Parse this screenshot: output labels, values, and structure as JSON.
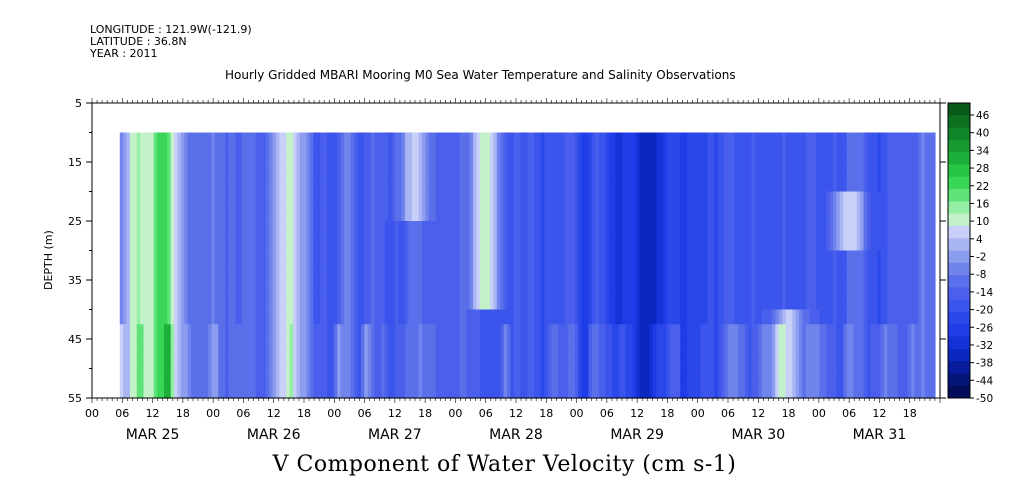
{
  "meta": {
    "longitude": "LONGITUDE : 121.9W(-121.9)",
    "latitude": "LATITUDE : 36.8N",
    "year": "YEAR : 2011"
  },
  "chart_data": {
    "type": "heatmap",
    "title": "Hourly Gridded MBARI Mooring M0 Sea Water Temperature and Salinity Observations",
    "subtitle": "V Component of Water Velocity (cm s-1)",
    "ylabel": "DEPTH (m)",
    "xlabel": "",
    "y_ticks": [
      5,
      15,
      25,
      35,
      45,
      55
    ],
    "ylim": [
      55,
      5
    ],
    "x_hour_ticks": [
      "00",
      "06",
      "12",
      "18"
    ],
    "x_days": [
      "MAR 25",
      "MAR 26",
      "MAR 27",
      "MAR 28",
      "MAR 29",
      "MAR 30",
      "MAR 31"
    ],
    "data_start_hour": 5.5,
    "data_end_hour": 167,
    "data_top_depth": 10,
    "colorbar_levels": [
      "46",
      "40",
      "34",
      "28",
      "22",
      "16",
      "10",
      "4",
      "-2",
      "-8",
      "-14",
      "-20",
      "-26",
      "-32",
      "-38",
      "-44",
      "-50"
    ],
    "colorbar_colors": [
      "#0a5a1a",
      "#0d7020",
      "#108528",
      "#179a30",
      "#1eaf3a",
      "#28c445",
      "#3ad658",
      "#5ee27a",
      "#94eea4",
      "#c4f2c8",
      "#c8cff8",
      "#aab6f3",
      "#8c9def",
      "#7084ec",
      "#5a6fea",
      "#4a60ec",
      "#3a54ec",
      "#2a48ea",
      "#1e3ce8",
      "#1432d8",
      "#0a28c0",
      "#061c9c",
      "#041478",
      "#020c58"
    ],
    "v_min": -50,
    "v_max": 50,
    "features": [
      {
        "day": "MAR 25",
        "hour_center": 9,
        "value": 12,
        "depth_from": 10,
        "depth_to": 55
      },
      {
        "day": "MAR 25",
        "hour_center": 14,
        "value": 25,
        "depth_from": 10,
        "depth_to": 55
      },
      {
        "day": "MAR 26",
        "hour_center": 15,
        "value": 10,
        "depth_from": 10,
        "depth_to": 55
      },
      {
        "day": "MAR 27",
        "hour_center": 16,
        "value": 6,
        "depth_from": 10,
        "depth_to": 25
      },
      {
        "day": "MAR 28",
        "hour_center": 6,
        "value": 12,
        "depth_from": 10,
        "depth_to": 40
      },
      {
        "day": "MAR 29",
        "hour_center": 14,
        "value": -36,
        "depth_from": 10,
        "depth_to": 55
      },
      {
        "day": "MAR 30",
        "hour_center": 18,
        "value": 6,
        "depth_from": 40,
        "depth_to": 55
      },
      {
        "day": "MAR 31",
        "hour_center": 6,
        "value": 8,
        "depth_from": 20,
        "depth_to": 28
      }
    ]
  }
}
